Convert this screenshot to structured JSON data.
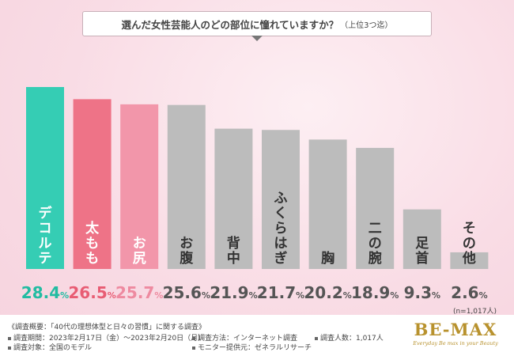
{
  "chart_data": {
    "type": "bar",
    "title": "選んだ女性芸能人のどの部位に憧れていますか？",
    "subtitle": "（上位3つ迄）",
    "categories": [
      "デコルテ",
      "太もも",
      "お尻",
      "お腹",
      "背中",
      "ふくらはぎ",
      "胸",
      "二の腕",
      "足首",
      "その他"
    ],
    "values": [
      28.4,
      26.5,
      25.7,
      25.6,
      21.9,
      21.7,
      20.2,
      18.9,
      9.3,
      2.6
    ],
    "value_labels": [
      "28.4%",
      "26.5%",
      "25.7%",
      "25.6%",
      "21.9%",
      "21.7%",
      "20.2%",
      "18.9%",
      "9.3%",
      "2.6%"
    ],
    "sample_note": "(n=1,017人)",
    "colors": [
      "#35cdb4",
      "#ee7387",
      "#f296aa",
      "#bcbcbc",
      "#bcbcbc",
      "#bcbcbc",
      "#bcbcbc",
      "#bcbcbc",
      "#bcbcbc",
      "#bcbcbc"
    ],
    "label_colors": [
      "#22bca2",
      "#e85c73",
      "#ee8aa0",
      "#555555",
      "#555555",
      "#555555",
      "#555555",
      "#555555",
      "#555555",
      "#555555"
    ],
    "ylim": [
      0,
      30
    ],
    "grid": false,
    "xlabel": "",
    "ylabel": ""
  },
  "notes": {
    "overview": "《調査概要：「40代の理想体型と日々の習慣」に関する調査》",
    "period": "調査期間：2023年2月17日（金）～2023年2月20日（月）",
    "target": "調査対象：全国のモデル",
    "method": "調査方法：インターネット調査",
    "provider": "モニター提供元：ゼネラルリサーチ",
    "count": "調査人数：1,017人"
  },
  "logo": {
    "main": "BE-MAX",
    "tagline": "Everyday Be max in your Beauty"
  }
}
